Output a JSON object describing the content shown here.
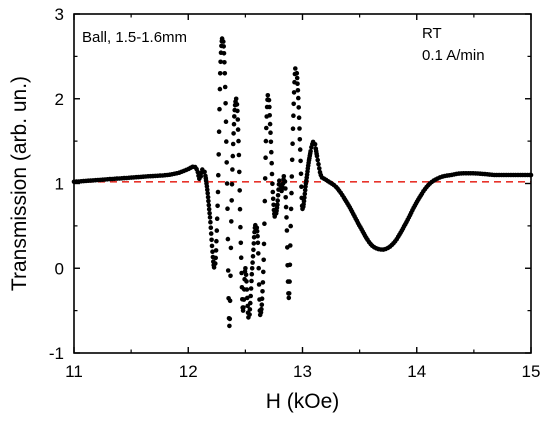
{
  "chart_data": {
    "type": "scatter",
    "xlabel": "H (kOe)",
    "ylabel": "Transmission (arb. un.)",
    "xlim": [
      11,
      15
    ],
    "ylim": [
      -1,
      3
    ],
    "xticks": [
      11,
      12,
      13,
      14,
      15
    ],
    "yticks": [
      -1,
      0,
      1,
      2,
      3
    ],
    "xtick_labels": [
      "11",
      "12",
      "13",
      "14",
      "15"
    ],
    "ytick_labels": [
      "-1",
      "0",
      "1",
      "2",
      "3"
    ],
    "grid": false,
    "annotations": [
      {
        "text": "Ball, 1.5-1.6mm",
        "position": "top-left"
      },
      {
        "text": "RT",
        "position": "top-right"
      },
      {
        "text": "0.1 A/min",
        "position": "top-right"
      }
    ],
    "reference_line": {
      "y": 1.02,
      "style": "dashed",
      "color": "#e8332a"
    },
    "series": [
      {
        "color": "#000000",
        "marker": "circle",
        "x": [
          11.0,
          11.3,
          11.6,
          11.9,
          12.0,
          12.05,
          12.08,
          12.1,
          12.13,
          12.16,
          12.19,
          12.23,
          12.26,
          12.28,
          12.3,
          12.32,
          12.34,
          12.36,
          12.38,
          12.4,
          12.42,
          12.44,
          12.46,
          12.48,
          12.5,
          12.53,
          12.56,
          12.59,
          12.61,
          12.63,
          12.66,
          12.68,
          12.7,
          12.72,
          12.74,
          12.76,
          12.78,
          12.8,
          12.82,
          12.84,
          12.86,
          12.88,
          12.9,
          12.92,
          12.94,
          12.96,
          12.98,
          13.0,
          13.03,
          13.06,
          13.1,
          13.13,
          13.16,
          13.2,
          13.3,
          13.4,
          13.5,
          13.6,
          13.7,
          13.8,
          13.9,
          14.0,
          14.1,
          14.2,
          14.3,
          14.4,
          14.5,
          14.6,
          14.7,
          14.8,
          14.9,
          15.0
        ],
        "y": [
          1.02,
          1.05,
          1.08,
          1.12,
          1.17,
          1.2,
          1.15,
          1.05,
          1.18,
          1.0,
          0.6,
          0.0,
          0.9,
          2.3,
          2.72,
          2.3,
          1.0,
          -0.68,
          0.8,
          1.7,
          2.0,
          1.5,
          0.3,
          -0.5,
          0.0,
          -0.6,
          0.0,
          0.52,
          0.3,
          -0.55,
          0.1,
          1.5,
          2.06,
          1.6,
          0.9,
          0.6,
          0.75,
          1.05,
          0.9,
          1.1,
          0.6,
          -0.35,
          0.7,
          1.8,
          2.38,
          2.1,
          1.4,
          0.7,
          1.0,
          1.3,
          1.5,
          1.3,
          1.1,
          1.05,
          0.95,
          0.75,
          0.5,
          0.28,
          0.22,
          0.3,
          0.52,
          0.78,
          0.98,
          1.07,
          1.1,
          1.12,
          1.12,
          1.11,
          1.1,
          1.1,
          1.1,
          1.1
        ]
      }
    ]
  }
}
